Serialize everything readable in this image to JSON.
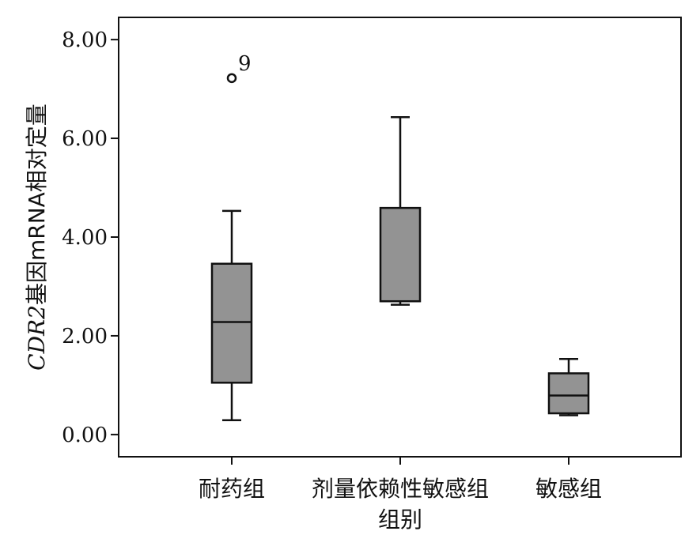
{
  "chart_data": {
    "type": "boxplot",
    "title": "",
    "xlabel": "组别",
    "ylabel_italic": "CDR2",
    "ylabel_rest": "基因mRNA相对定量",
    "ylim": [
      -0.45,
      8.45
    ],
    "yticks": [
      0,
      2,
      4,
      6,
      8
    ],
    "ytick_labels": [
      "0.00",
      "2.00",
      "4.00",
      "6.00",
      "8.00"
    ],
    "grid": false,
    "legend": "none",
    "box_color": "#939393",
    "categories": [
      "耐药组",
      "剂量依赖性敏感组",
      "敏感组"
    ],
    "boxes": [
      {
        "category": "耐药组",
        "min": 0.29,
        "q1": 1.05,
        "median": 2.28,
        "q3": 3.46,
        "max": 4.53,
        "outliers": [
          {
            "value": 7.22,
            "label": "9"
          }
        ]
      },
      {
        "category": "剂量依赖性敏感组",
        "min": 2.63,
        "q1": 2.7,
        "median": 2.7,
        "q3": 4.59,
        "max": 6.43,
        "outliers": []
      },
      {
        "category": "敏感组",
        "min": 0.39,
        "q1": 0.43,
        "median": 0.79,
        "q3": 1.24,
        "max": 1.53,
        "outliers": []
      }
    ]
  }
}
